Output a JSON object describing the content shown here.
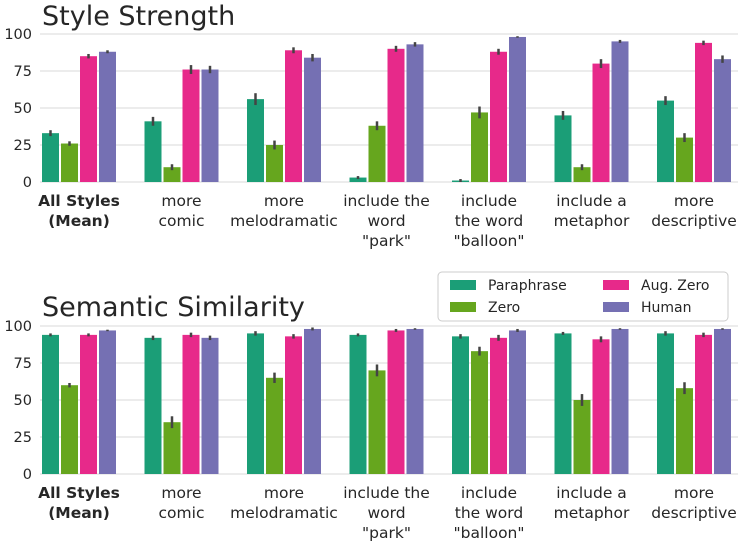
{
  "chart_data": [
    {
      "type": "bar",
      "title": "Style Strength",
      "xlabel": "",
      "ylabel": "",
      "ylim": [
        0,
        100
      ],
      "yticks": [
        "0",
        "25",
        "50",
        "75",
        "100"
      ],
      "categories": [
        [
          "All Styles",
          "(Mean)"
        ],
        [
          "more",
          "comic"
        ],
        [
          "more",
          "melodramatic"
        ],
        [
          "include the",
          "word",
          "\"park\""
        ],
        [
          "include",
          "the word",
          "\"balloon\""
        ],
        [
          "include a",
          "metaphor"
        ],
        [
          "more",
          "descriptive"
        ]
      ],
      "bold_categories": [
        0
      ],
      "series": [
        {
          "name": "Paraphrase",
          "color": "#1b9e77",
          "values": [
            33,
            41,
            56,
            3,
            1,
            45,
            55
          ],
          "errors": [
            2,
            3,
            4,
            1,
            1,
            3,
            3
          ]
        },
        {
          "name": "Zero",
          "color": "#66a61e",
          "values": [
            26,
            10,
            25,
            38,
            47,
            10,
            30
          ],
          "errors": [
            1.5,
            2,
            3,
            3,
            4,
            2,
            3
          ]
        },
        {
          "name": "Aug. Zero",
          "color": "#e7298a",
          "values": [
            85,
            76,
            89,
            90,
            88,
            80,
            94
          ],
          "errors": [
            1.5,
            3,
            2,
            2,
            2,
            3,
            1.5
          ]
        },
        {
          "name": "Human",
          "color": "#7570b3",
          "values": [
            88,
            76,
            84,
            93,
            98,
            95,
            83
          ],
          "errors": [
            1,
            2.5,
            2.5,
            1.5,
            0.5,
            1,
            2.5
          ]
        }
      ]
    },
    {
      "type": "bar",
      "title": "Semantic Similarity",
      "xlabel": "",
      "ylabel": "",
      "ylim": [
        0,
        100
      ],
      "yticks": [
        "0",
        "25",
        "50",
        "75",
        "100"
      ],
      "categories": [
        [
          "All Styles",
          "(Mean)"
        ],
        [
          "more",
          "comic"
        ],
        [
          "more",
          "melodramatic"
        ],
        [
          "include the",
          "word",
          "\"park\""
        ],
        [
          "include",
          "the word",
          "\"balloon\""
        ],
        [
          "include a",
          "metaphor"
        ],
        [
          "more",
          "descriptive"
        ]
      ],
      "bold_categories": [
        0
      ],
      "legend": {
        "placement": "top-right",
        "entries": [
          {
            "label": "Paraphrase",
            "color": "#1b9e77"
          },
          {
            "label": "Zero",
            "color": "#66a61e"
          },
          {
            "label": "Aug. Zero",
            "color": "#e7298a"
          },
          {
            "label": "Human",
            "color": "#7570b3"
          }
        ]
      },
      "series": [
        {
          "name": "Paraphrase",
          "color": "#1b9e77",
          "values": [
            94,
            92,
            95,
            94,
            93,
            95,
            95
          ],
          "errors": [
            1,
            1.5,
            1.5,
            1,
            1.5,
            1,
            1.5
          ]
        },
        {
          "name": "Zero",
          "color": "#66a61e",
          "values": [
            60,
            35,
            65,
            70,
            83,
            50,
            58
          ],
          "errors": [
            1.5,
            4,
            3.5,
            4,
            3,
            4,
            4
          ]
        },
        {
          "name": "Aug. Zero",
          "color": "#e7298a",
          "values": [
            94,
            94,
            93,
            97,
            92,
            91,
            94
          ],
          "errors": [
            1,
            1.5,
            1.5,
            1,
            2,
            2,
            1.5
          ]
        },
        {
          "name": "Human",
          "color": "#7570b3",
          "values": [
            97,
            92,
            98,
            98,
            97,
            98,
            98
          ],
          "errors": [
            0.5,
            1.5,
            1,
            0.5,
            1,
            0.5,
            0.5
          ]
        }
      ]
    }
  ]
}
